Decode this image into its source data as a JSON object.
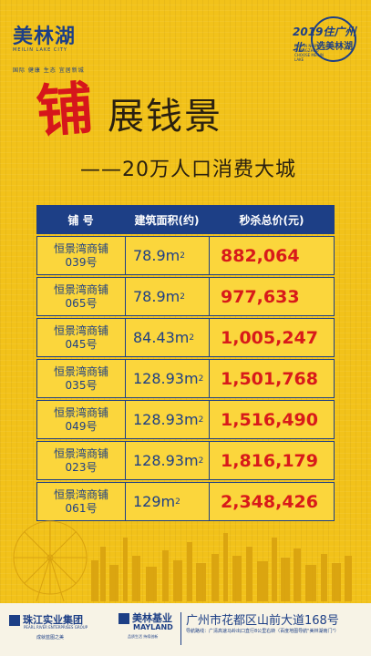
{
  "brand": {
    "name": "美林湖",
    "name_en": "MEILIN LAKE CITY",
    "tagline": "国际 健康 生态 宜居新城"
  },
  "badge": {
    "year_text": "2019住广州北",
    "line2": "选美林湖",
    "en": "LIVE IN NORTH GUANGZHOU CHOOSE MEILIN LAKE"
  },
  "headline": {
    "big_char": "铺",
    "rest": "展钱景",
    "sub": "——20万人口消费大城"
  },
  "table": {
    "headers": [
      "铺 号",
      "建筑面积(约)",
      "秒杀总价(元)"
    ],
    "rows": [
      {
        "name": "恒景湾商铺",
        "num": "039号",
        "area": "78.9m",
        "price": "882,064"
      },
      {
        "name": "恒景湾商铺",
        "num": "065号",
        "area": "78.9m",
        "price": "977,633"
      },
      {
        "name": "恒景湾商铺",
        "num": "045号",
        "area": "84.43m",
        "price": "1,005,247"
      },
      {
        "name": "恒景湾商铺",
        "num": "035号",
        "area": "128.93m",
        "price": "1,501,768"
      },
      {
        "name": "恒景湾商铺",
        "num": "049号",
        "area": "128.93m",
        "price": "1,516,490"
      },
      {
        "name": "恒景湾商铺",
        "num": "023号",
        "area": "128.93m",
        "price": "1,816,179"
      },
      {
        "name": "恒景湾商铺",
        "num": "061号",
        "area": "129m",
        "price": "2,348,426"
      }
    ],
    "sup": "2"
  },
  "footer": {
    "logo1": "珠江实业集团",
    "logo1_en": "PEARL RIVER ENTERPRISES GROUP",
    "logo1_sub": "成就蓝图之美",
    "logo2": "美林基业",
    "logo2_en": "MAYLAND",
    "logo2_sub": "品质生活 持续创新",
    "address": "广州市花都区山前大道168号",
    "nav": "导航路线：广清高速马岭出口直行8公里右转（百度地图导航\"美林湖南门\"）"
  },
  "colors": {
    "brand_blue": "#1d3f86",
    "price_red": "#d81a1a",
    "bg_yellow": "#f2c21a"
  }
}
